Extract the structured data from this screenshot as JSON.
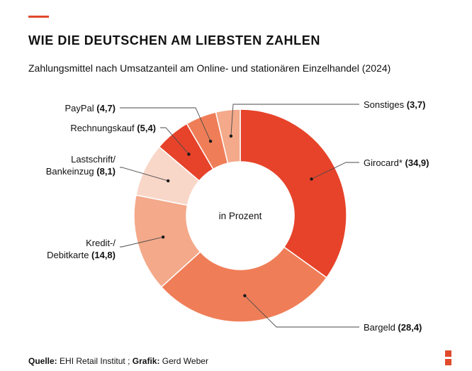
{
  "header": {
    "title": "WIE DIE DEUTSCHEN AM LIEBSTEN ZAHLEN",
    "subtitle": "Zahlungsmittel nach Umsatzanteil am Online- und stationären Einzelhandel (2024)"
  },
  "colors": {
    "accent": "#e04a2c",
    "girocard": "#e6432a",
    "bargeld": "#ef7e58",
    "kredit": "#f3a98a",
    "lastschrift": "#f9d7c8",
    "rechnungskauf": "#e6432a",
    "paypal": "#ef7e58",
    "sonstiges": "#f3a98a",
    "logo": "#e04a2c"
  },
  "chart_data": {
    "type": "pie",
    "style": "donut",
    "center_label": "in Prozent",
    "slices": [
      {
        "id": "girocard",
        "label": [
          "Girocard*"
        ],
        "value": 34.9,
        "value_text": "(34,9)",
        "color": "#e6432a"
      },
      {
        "id": "bargeld",
        "label": [
          "Bargeld"
        ],
        "value": 28.4,
        "value_text": "(28,4)",
        "color": "#ef7e58"
      },
      {
        "id": "kredit",
        "label": [
          "Kredit-/",
          "Debitkarte"
        ],
        "value": 14.8,
        "value_text": "(14,8)",
        "color": "#f3a98a"
      },
      {
        "id": "lastschrift",
        "label": [
          "Lastschrift/",
          "Bankeinzug"
        ],
        "value": 8.1,
        "value_text": "(8,1)",
        "color": "#f9d7c8"
      },
      {
        "id": "rechnungskauf",
        "label": [
          "Rechnungskauf"
        ],
        "value": 5.4,
        "value_text": "(5,4)",
        "color": "#e6432a"
      },
      {
        "id": "paypal",
        "label": [
          "PayPal"
        ],
        "value": 4.7,
        "value_text": "(4,7)",
        "color": "#ef7e58"
      },
      {
        "id": "sonstiges",
        "label": [
          "Sonstiges"
        ],
        "value": 3.7,
        "value_text": "(3,7)",
        "color": "#f3a98a"
      }
    ]
  },
  "footer": {
    "source_label": "Quelle:",
    "source_value": "EHI Retail Institut",
    "separator": ";",
    "graphic_label": "Grafik:",
    "graphic_value": "Gerd Weber"
  }
}
